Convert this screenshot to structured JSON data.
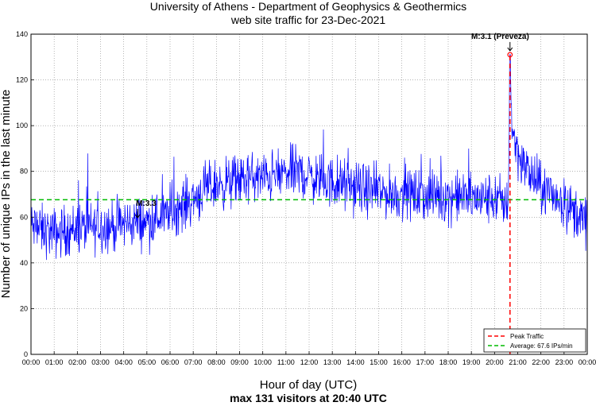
{
  "chart_data": {
    "type": "line",
    "title": "University of Athens - Department of Geophysics & Geothermics",
    "subtitle": "web site traffic for 23-Dec-2021",
    "xlabel": "Hour of day (UTC)",
    "ylabel": "Number of unique IPs in the last minute",
    "footer": "max 131 visitors at 20:40 UTC",
    "x_ticks": [
      "00:00",
      "01:00",
      "02:00",
      "03:00",
      "04:00",
      "05:00",
      "06:00",
      "07:00",
      "08:00",
      "09:00",
      "10:00",
      "11:00",
      "12:00",
      "13:00",
      "14:00",
      "15:00",
      "16:00",
      "17:00",
      "18:00",
      "19:00",
      "20:00",
      "21:00",
      "22:00",
      "23:00",
      "00:00"
    ],
    "y_ticks": [
      0,
      20,
      40,
      60,
      80,
      100,
      120,
      140
    ],
    "xlim": [
      0,
      24
    ],
    "ylim": [
      0,
      140
    ],
    "grid": true,
    "series": [
      {
        "name": "Traffic",
        "color": "#0000ff",
        "x_hours": [
          0,
          0.5,
          1,
          1.5,
          2,
          2.5,
          3,
          3.5,
          4,
          4.5,
          5,
          5.5,
          6,
          6.5,
          7,
          7.5,
          8,
          8.5,
          9,
          9.5,
          10,
          10.5,
          11,
          11.5,
          12,
          12.5,
          13,
          13.5,
          14,
          14.5,
          15,
          15.5,
          16,
          16.5,
          17,
          17.5,
          18,
          18.5,
          19,
          19.5,
          20,
          20.5,
          20.6,
          20.667,
          20.75,
          20.9,
          21.1,
          21.3,
          21.5,
          21.75,
          22,
          22.5,
          23,
          23.5,
          24
        ],
        "values": [
          56,
          54,
          53,
          54,
          55,
          55,
          56,
          56,
          57,
          58,
          58,
          60,
          62,
          65,
          68,
          72,
          74,
          75,
          76,
          77,
          77,
          78,
          79,
          80,
          78,
          76,
          75,
          74,
          73,
          72,
          71,
          70,
          70,
          70,
          69,
          69,
          69,
          69,
          68,
          68,
          68,
          66,
          70,
          131,
          100,
          92,
          86,
          82,
          79,
          76,
          72,
          70,
          66,
          62,
          57
        ]
      }
    ],
    "average": 67.6,
    "peak": {
      "time": "20:40",
      "hour": 20.667,
      "value": 131
    },
    "annotations": [
      {
        "text": "M:3.3",
        "hour": 4.6,
        "value": 58
      },
      {
        "text": "M:3.1 (Preveza)",
        "hour": 20.667,
        "value": 131
      }
    ],
    "legend": {
      "position": "bottom-right",
      "entries": [
        {
          "label": "Peak Traffic",
          "color": "#ff0000",
          "style": "dashed"
        },
        {
          "label": "Average: 67.6 IPs/min",
          "color": "#00bb00",
          "style": "dashed"
        }
      ]
    }
  }
}
